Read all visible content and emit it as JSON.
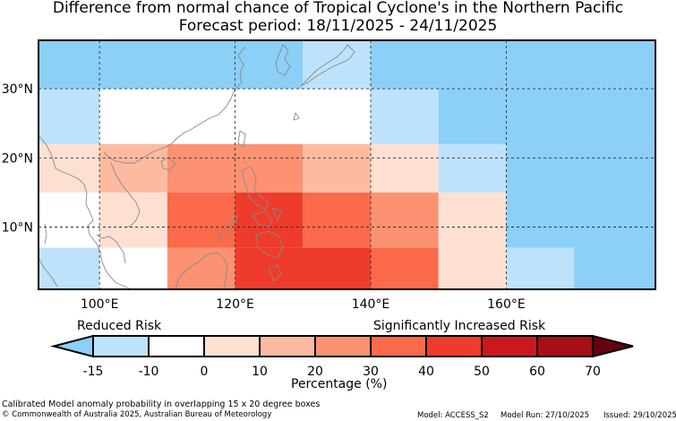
{
  "title": {
    "line1": "Difference from normal chance of Tropical Cyclone's in the Northern Pacific",
    "line2": "Forecast period: 18/11/2025 - 24/11/2025"
  },
  "map": {
    "lat_ticks": [
      "30°N",
      "20°N",
      "10°N"
    ],
    "lon_ticks": [
      "100°E",
      "120°E",
      "140°E",
      "160°E"
    ],
    "lon_range": [
      91,
      182
    ],
    "lat_range": [
      1,
      37
    ],
    "grid": true,
    "cells": [
      {
        "lon": [
          91,
          100
        ],
        "lat": [
          30,
          37
        ],
        "risk": "-15"
      },
      {
        "lon": [
          100,
          130
        ],
        "lat": [
          30,
          37
        ],
        "risk": "-15"
      },
      {
        "lon": [
          130,
          140
        ],
        "lat": [
          30,
          37
        ],
        "risk": "-10"
      },
      {
        "lon": [
          140,
          182
        ],
        "lat": [
          30,
          37
        ],
        "risk": "-15"
      },
      {
        "lon": [
          91,
          100
        ],
        "lat": [
          22,
          30
        ],
        "risk": "-10"
      },
      {
        "lon": [
          100,
          140
        ],
        "lat": [
          22,
          30
        ],
        "risk": "0"
      },
      {
        "lon": [
          140,
          150
        ],
        "lat": [
          22,
          30
        ],
        "risk": "-10"
      },
      {
        "lon": [
          150,
          182
        ],
        "lat": [
          22,
          30
        ],
        "risk": "-15"
      },
      {
        "lon": [
          91,
          100
        ],
        "lat": [
          15,
          22
        ],
        "risk": "0+"
      },
      {
        "lon": [
          100,
          110
        ],
        "lat": [
          15,
          22
        ],
        "risk": "10"
      },
      {
        "lon": [
          110,
          130
        ],
        "lat": [
          15,
          22
        ],
        "risk": "20"
      },
      {
        "lon": [
          130,
          140
        ],
        "lat": [
          15,
          22
        ],
        "risk": "10"
      },
      {
        "lon": [
          140,
          150
        ],
        "lat": [
          15,
          22
        ],
        "risk": "0+"
      },
      {
        "lon": [
          150,
          160
        ],
        "lat": [
          15,
          22
        ],
        "risk": "-10"
      },
      {
        "lon": [
          160,
          182
        ],
        "lat": [
          15,
          22
        ],
        "risk": "-15"
      },
      {
        "lon": [
          91,
          100
        ],
        "lat": [
          7,
          15
        ],
        "risk": "0"
      },
      {
        "lon": [
          100,
          110
        ],
        "lat": [
          7,
          15
        ],
        "risk": "0+"
      },
      {
        "lon": [
          110,
          120
        ],
        "lat": [
          7,
          15
        ],
        "risk": "30"
      },
      {
        "lon": [
          120,
          130
        ],
        "lat": [
          7,
          15
        ],
        "risk": "40"
      },
      {
        "lon": [
          130,
          140
        ],
        "lat": [
          7,
          15
        ],
        "risk": "30"
      },
      {
        "lon": [
          140,
          150
        ],
        "lat": [
          7,
          15
        ],
        "risk": "20"
      },
      {
        "lon": [
          150,
          160
        ],
        "lat": [
          7,
          15
        ],
        "risk": "0+"
      },
      {
        "lon": [
          160,
          182
        ],
        "lat": [
          7,
          15
        ],
        "risk": "-15"
      },
      {
        "lon": [
          91,
          100
        ],
        "lat": [
          1,
          7
        ],
        "risk": "-10"
      },
      {
        "lon": [
          100,
          110
        ],
        "lat": [
          1,
          7
        ],
        "risk": "0"
      },
      {
        "lon": [
          110,
          120
        ],
        "lat": [
          1,
          7
        ],
        "risk": "20"
      },
      {
        "lon": [
          120,
          140
        ],
        "lat": [
          1,
          7
        ],
        "risk": "40"
      },
      {
        "lon": [
          140,
          150
        ],
        "lat": [
          1,
          7
        ],
        "risk": "30"
      },
      {
        "lon": [
          150,
          160
        ],
        "lat": [
          1,
          7
        ],
        "risk": "0+"
      },
      {
        "lon": [
          160,
          170
        ],
        "lat": [
          1,
          7
        ],
        "risk": "-10"
      },
      {
        "lon": [
          170,
          182
        ],
        "lat": [
          1,
          7
        ],
        "risk": "-15"
      }
    ]
  },
  "colorbar": {
    "reduced_label": "Reduced Risk",
    "increased_label": "Significantly Increased Risk",
    "tick_labels": [
      "-15",
      "-10",
      "0",
      "10",
      "20",
      "30",
      "40",
      "50",
      "60",
      "70"
    ],
    "units_label": "Percentage (%)",
    "colors": [
      "#bde2fb",
      "#ffffff",
      "#fee0d2",
      "#fcbba1",
      "#fc9272",
      "#fb6a4a",
      "#ef3b2c",
      "#cb181d",
      "#a50f15"
    ],
    "under_color": "#8ccff7",
    "over_color": "#67000d"
  },
  "palette": {
    "-15": "#8ccff7",
    "-10": "#bde2fb",
    "0": "#ffffff",
    "0+": "#fee0d2",
    "10": "#fcbba1",
    "20": "#fc9272",
    "30": "#fb6a4a",
    "40": "#ef3b2c"
  },
  "footer": {
    "method": "Calibrated Model anomaly probability in overlapping 15 x 20 degree boxes",
    "copyright": "© Commonwealth of Australia 2025, Australian Bureau of Meteorology",
    "model": "Model: ACCESS_S2",
    "model_run": "Model Run: 27/10/2025",
    "issued": "Issued: 29/10/2025"
  }
}
